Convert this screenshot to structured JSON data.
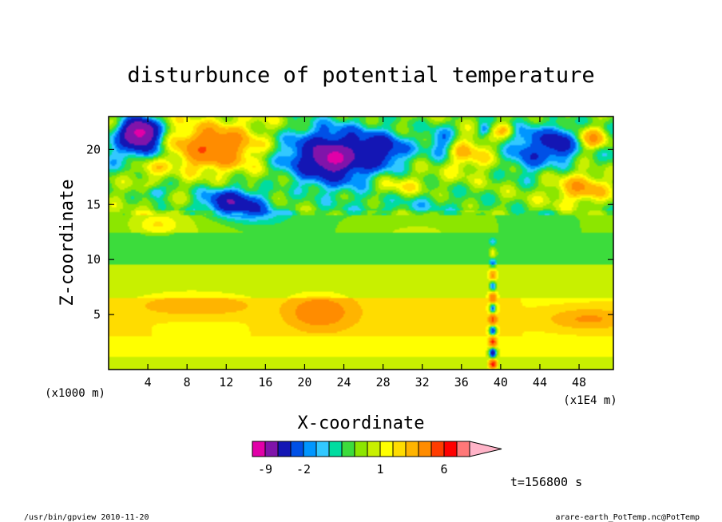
{
  "chart_data": {
    "type": "heatmap",
    "title": "disturbunce of potential temperature",
    "xlabel": "X-coordinate",
    "ylabel": "Z-coordinate",
    "x_unit_left": "(x1000 m)",
    "x_unit_right": "(x1E4 m)",
    "xlim": [
      0,
      51.5
    ],
    "ylim": [
      0,
      23
    ],
    "x_ticks": [
      4,
      8,
      12,
      16,
      20,
      24,
      28,
      32,
      36,
      40,
      44,
      48
    ],
    "y_ticks": [
      5,
      10,
      15,
      20
    ],
    "time_label": "t=156800 s",
    "colorbar": {
      "levels": [
        -12,
        -9,
        -5,
        -3,
        -2,
        -1.5,
        -1,
        -0.5,
        0,
        0.5,
        1,
        1.5,
        2,
        3,
        5,
        6,
        9,
        12
      ],
      "tick_labels": [
        "-9",
        "-2",
        "1",
        "6"
      ],
      "tick_values": [
        -9,
        -2,
        1,
        6
      ],
      "colors": [
        "#e100a8",
        "#8014aa",
        "#1416b4",
        "#0050e6",
        "#0096ff",
        "#32c8ff",
        "#00dca0",
        "#3cdc3c",
        "#8ce600",
        "#c8f000",
        "#ffff00",
        "#ffdc00",
        "#ffb400",
        "#ff8c00",
        "#ff3c00",
        "#ff0000",
        "#ff7878"
      ],
      "extend": "max"
    },
    "features": [
      {
        "x": 3.2,
        "z": 21.6,
        "v": -10,
        "rx": 1.6,
        "rz": 1.1
      },
      {
        "x": 3.5,
        "z": 19.5,
        "v": -3,
        "rx": 3.0,
        "rz": 2.0
      },
      {
        "x": 4.0,
        "z": 18.5,
        "v": 3,
        "rx": 2.2,
        "rz": 1.2
      },
      {
        "x": 10.5,
        "z": 20.0,
        "v": 4,
        "rx": 4.0,
        "rz": 1.8
      },
      {
        "x": 11.0,
        "z": 21.0,
        "v": 1.5,
        "rx": 5.5,
        "rz": 2.5
      },
      {
        "x": 12.5,
        "z": 15.3,
        "v": -4,
        "rx": 2.8,
        "rz": 1.2
      },
      {
        "x": 15.0,
        "z": 14.5,
        "v": -1.5,
        "rx": 3.0,
        "rz": 1.2
      },
      {
        "x": 4.8,
        "z": 16.1,
        "v": -2.5,
        "rx": 1.0,
        "rz": 0.6
      },
      {
        "x": 22.5,
        "z": 19.2,
        "v": -5,
        "rx": 4.5,
        "rz": 2.5
      },
      {
        "x": 23.0,
        "z": 19.2,
        "v": -6,
        "rx": 1.3,
        "rz": 0.8
      },
      {
        "x": 28.0,
        "z": 20.0,
        "v": -3,
        "rx": 2.5,
        "rz": 1.5
      },
      {
        "x": 31.0,
        "z": 15.2,
        "v": -1.2,
        "rx": 5.0,
        "rz": 1.4
      },
      {
        "x": 29.5,
        "z": 16.5,
        "v": 1.3,
        "rx": 2.5,
        "rz": 1.0
      },
      {
        "x": 34.0,
        "z": 20.5,
        "v": -2.5,
        "rx": 1.5,
        "rz": 1.5
      },
      {
        "x": 36.5,
        "z": 19.8,
        "v": 2.5,
        "rx": 2.8,
        "rz": 1.8
      },
      {
        "x": 38.3,
        "z": 21.8,
        "v": -2,
        "rx": 0.6,
        "rz": 0.5
      },
      {
        "x": 40.5,
        "z": 21.8,
        "v": 2.5,
        "rx": 1.0,
        "rz": 0.7
      },
      {
        "x": 43.0,
        "z": 20.0,
        "v": -2.5,
        "rx": 2.0,
        "rz": 2.5
      },
      {
        "x": 46.0,
        "z": 20.5,
        "v": -4,
        "rx": 1.5,
        "rz": 1.5
      },
      {
        "x": 49.5,
        "z": 21.0,
        "v": 3,
        "rx": 1.5,
        "rz": 1.0
      },
      {
        "x": 48.5,
        "z": 16.5,
        "v": 2.5,
        "rx": 2.5,
        "rz": 1.3
      },
      {
        "x": 5.0,
        "z": 13.2,
        "v": 1.0,
        "rx": 2.0,
        "rz": 0.8
      },
      {
        "x": 21.5,
        "z": 5.2,
        "v": 3,
        "rx": 2.8,
        "rz": 1.3
      },
      {
        "x": 49.0,
        "z": 4.6,
        "v": 1.8,
        "rx": 3.5,
        "rz": 0.8
      },
      {
        "x": 9.0,
        "z": 5.8,
        "v": 1.5,
        "rx": 5.0,
        "rz": 0.8
      }
    ]
  },
  "footer": {
    "left": "/usr/bin/gpview  2010-11-20",
    "right": "arare-earth_PotTemp.nc@PotTemp"
  }
}
